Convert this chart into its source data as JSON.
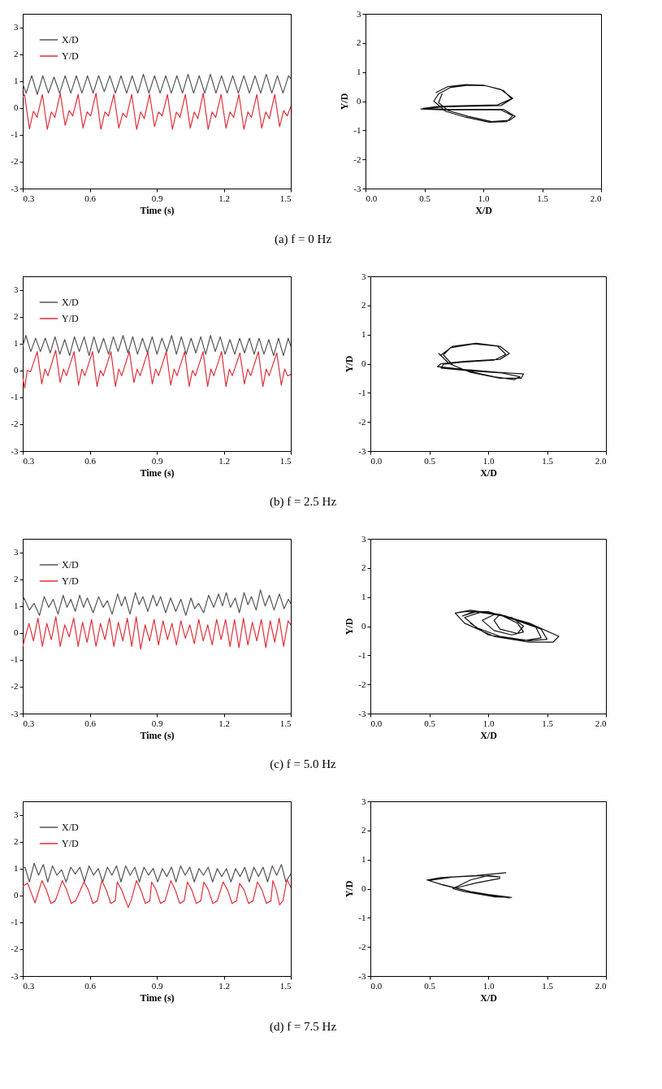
{
  "chart_data": [
    {
      "type": "line",
      "xlabel": "Time (s)",
      "xlim": [
        0.3,
        1.5
      ],
      "xticks": [
        0.3,
        0.6,
        0.9,
        1.2,
        1.5
      ],
      "ylim": [
        -3,
        3.5
      ],
      "yticks": [
        -3,
        -2,
        -1,
        0,
        1,
        2,
        3
      ],
      "legend": "top left",
      "annotations": [
        "(a) f = 0 Hz"
      ],
      "series": [
        {
          "name": "X/D",
          "color": "#555555",
          "x": [
            0.3,
            0.315,
            0.34,
            0.365,
            0.39,
            0.415,
            0.44,
            0.465,
            0.49,
            0.515,
            0.54,
            0.565,
            0.59,
            0.615,
            0.64,
            0.665,
            0.69,
            0.715,
            0.74,
            0.765,
            0.79,
            0.815,
            0.84,
            0.865,
            0.89,
            0.915,
            0.94,
            0.965,
            0.99,
            1.015,
            1.04,
            1.065,
            1.09,
            1.115,
            1.14,
            1.165,
            1.19,
            1.215,
            1.24,
            1.265,
            1.29,
            1.315,
            1.34,
            1.365,
            1.39,
            1.415,
            1.44,
            1.465,
            1.49,
            1.5
          ],
          "values": [
            0.9,
            0.55,
            1.2,
            0.5,
            1.2,
            0.55,
            1.15,
            0.55,
            1.2,
            0.55,
            1.2,
            0.55,
            1.2,
            0.55,
            1.2,
            0.6,
            1.2,
            0.55,
            1.2,
            0.55,
            1.2,
            0.55,
            1.25,
            0.55,
            1.2,
            0.55,
            1.2,
            0.55,
            1.2,
            0.55,
            1.25,
            0.55,
            1.2,
            0.55,
            1.25,
            0.55,
            1.2,
            0.55,
            1.2,
            0.55,
            1.2,
            0.55,
            1.2,
            0.55,
            1.25,
            0.55,
            1.2,
            0.55,
            1.2,
            1.1
          ]
        },
        {
          "name": "Y/D",
          "color": "#e0303a",
          "x": [
            0.3,
            0.308,
            0.33,
            0.348,
            0.364,
            0.388,
            0.41,
            0.428,
            0.444,
            0.468,
            0.49,
            0.508,
            0.524,
            0.548,
            0.57,
            0.588,
            0.604,
            0.628,
            0.65,
            0.668,
            0.684,
            0.708,
            0.73,
            0.748,
            0.764,
            0.788,
            0.81,
            0.828,
            0.844,
            0.868,
            0.89,
            0.908,
            0.924,
            0.948,
            0.97,
            0.988,
            1.004,
            1.028,
            1.05,
            1.068,
            1.084,
            1.108,
            1.13,
            1.148,
            1.164,
            1.188,
            1.21,
            1.228,
            1.244,
            1.268,
            1.29,
            1.308,
            1.324,
            1.348,
            1.37,
            1.388,
            1.404,
            1.428,
            1.45,
            1.468,
            1.484,
            1.5
          ],
          "values": [
            0.4,
            0.5,
            -0.78,
            -0.12,
            -0.35,
            0.5,
            -0.8,
            -0.15,
            -0.35,
            0.55,
            -0.65,
            -0.1,
            -0.3,
            0.5,
            -0.75,
            -0.15,
            -0.3,
            0.55,
            -0.8,
            -0.15,
            -0.3,
            0.5,
            -0.75,
            -0.2,
            -0.35,
            0.5,
            -0.8,
            -0.15,
            -0.4,
            0.5,
            -0.7,
            -0.15,
            -0.3,
            0.5,
            -0.8,
            -0.15,
            -0.35,
            0.5,
            -0.75,
            -0.15,
            -0.4,
            0.55,
            -0.8,
            -0.15,
            -0.35,
            0.5,
            -0.75,
            -0.15,
            -0.35,
            0.5,
            -0.8,
            -0.15,
            -0.35,
            0.5,
            -0.75,
            -0.15,
            -0.4,
            0.5,
            -0.7,
            -0.1,
            -0.3,
            0.05
          ]
        }
      ]
    },
    {
      "type": "line",
      "xlabel": "X/D",
      "ylabel": "Y/D",
      "xlim": [
        0,
        2
      ],
      "xticks": [
        {
          "value": 0,
          "label": "0.0"
        },
        {
          "value": 0.5,
          "label": "0.5"
        },
        {
          "value": 1,
          "label": "1.0"
        },
        {
          "value": 1.5,
          "label": "1.5"
        },
        {
          "value": 2,
          "label": "2.0"
        }
      ],
      "ylim": [
        -3,
        3
      ],
      "yticks": [
        -3,
        -2,
        -1,
        0,
        1,
        2,
        3
      ],
      "series": [
        {
          "color": "#111111",
          "x": [
            0.6,
            0.7,
            0.85,
            1.0,
            1.15,
            1.25,
            1.15,
            0.9,
            0.65,
            0.47,
            0.65,
            0.95,
            1.15,
            1.25,
            1.2,
            1.05,
            0.85,
            0.68,
            0.58,
            0.62,
            0.72,
            0.87,
            1.02,
            1.17,
            1.24,
            1.12,
            0.88,
            0.62,
            0.49,
            0.68,
            0.97,
            1.17,
            1.27,
            1.22,
            1.07,
            0.87,
            0.7,
            0.62,
            0.65
          ],
          "values": [
            0.3,
            0.5,
            0.57,
            0.55,
            0.4,
            0.1,
            -0.15,
            -0.17,
            -0.2,
            -0.27,
            -0.3,
            -0.3,
            -0.3,
            -0.5,
            -0.7,
            -0.72,
            -0.55,
            -0.35,
            0.0,
            0.25,
            0.47,
            0.55,
            0.53,
            0.37,
            0.08,
            -0.13,
            -0.15,
            -0.18,
            -0.25,
            -0.28,
            -0.28,
            -0.28,
            -0.52,
            -0.66,
            -0.7,
            -0.52,
            -0.32,
            -0.05,
            0.25
          ]
        }
      ]
    },
    {
      "type": "line",
      "xlabel": "Time (s)",
      "xlim": [
        0.3,
        1.5
      ],
      "xticks": [
        0.3,
        0.6,
        0.9,
        1.2,
        1.5
      ],
      "ylim": [
        -3,
        3.5
      ],
      "yticks": [
        -3,
        -2,
        -1,
        0,
        1,
        2,
        3
      ],
      "legend": "top left",
      "annotations": [
        "(b) f = 2.5 Hz"
      ],
      "series": [
        {
          "name": "X/D",
          "color": "#555555",
          "x": [
            0.3,
            0.314,
            0.336,
            0.3575,
            0.379,
            0.401,
            0.423,
            0.4445,
            0.466,
            0.488,
            0.51,
            0.5315,
            0.553,
            0.575,
            0.597,
            0.6185,
            0.64,
            0.662,
            0.684,
            0.7055,
            0.727,
            0.749,
            0.771,
            0.7925,
            0.814,
            0.836,
            0.858,
            0.8795,
            0.901,
            0.923,
            0.945,
            0.9665,
            0.988,
            1.01,
            1.032,
            1.0535,
            1.075,
            1.097,
            1.119,
            1.1405,
            1.162,
            1.184,
            1.206,
            1.2275,
            1.249,
            1.271,
            1.293,
            1.3145,
            1.336,
            1.358,
            1.38,
            1.4015,
            1.423,
            1.445,
            1.467,
            1.4885,
            1.5
          ],
          "values": [
            0.9,
            1.3,
            0.7,
            1.2,
            0.7,
            1.2,
            0.65,
            1.25,
            0.6,
            1.15,
            0.55,
            1.25,
            0.7,
            1.25,
            0.55,
            1.25,
            0.65,
            1.2,
            0.6,
            1.25,
            0.7,
            1.3,
            0.65,
            1.25,
            0.6,
            1.2,
            0.65,
            1.25,
            0.6,
            1.2,
            0.7,
            1.3,
            0.6,
            1.25,
            0.6,
            1.2,
            0.65,
            1.25,
            0.6,
            1.3,
            0.7,
            1.25,
            0.6,
            1.15,
            0.6,
            1.2,
            0.65,
            1.2,
            0.6,
            1.2,
            0.6,
            1.15,
            0.55,
            1.2,
            0.55,
            1.2,
            0.9
          ]
        },
        {
          "name": "Y/D",
          "color": "#e0303a",
          "x": [
            0.3,
            0.309,
            0.32,
            0.335,
            0.365,
            0.385,
            0.4,
            0.413,
            0.4475,
            0.4675,
            0.4825,
            0.4955,
            0.53,
            0.55,
            0.565,
            0.578,
            0.6125,
            0.6325,
            0.6475,
            0.6605,
            0.695,
            0.715,
            0.73,
            0.743,
            0.7775,
            0.7975,
            0.8125,
            0.8255,
            0.86,
            0.88,
            0.895,
            0.908,
            0.9425,
            0.9625,
            0.9775,
            0.9905,
            1.025,
            1.045,
            1.06,
            1.073,
            1.1075,
            1.1275,
            1.1425,
            1.1555,
            1.19,
            1.21,
            1.225,
            1.238,
            1.2725,
            1.2925,
            1.3075,
            1.3205,
            1.355,
            1.375,
            1.39,
            1.403,
            1.4375,
            1.4575,
            1.4725,
            1.4855,
            1.5
          ],
          "values": [
            -0.3,
            -0.65,
            0.0,
            -0.05,
            0.7,
            -0.5,
            0.05,
            -0.2,
            0.75,
            -0.45,
            0.05,
            -0.2,
            0.7,
            -0.55,
            0.05,
            -0.2,
            0.7,
            -0.6,
            0.0,
            -0.2,
            0.7,
            -0.6,
            0.05,
            -0.2,
            0.7,
            -0.45,
            0.05,
            -0.2,
            0.7,
            -0.5,
            0.05,
            -0.2,
            0.7,
            -0.55,
            0.05,
            -0.2,
            0.7,
            -0.6,
            0.0,
            -0.2,
            0.7,
            -0.6,
            0.05,
            -0.2,
            0.7,
            -0.6,
            0.05,
            -0.2,
            0.65,
            -0.5,
            0.05,
            -0.2,
            0.7,
            -0.6,
            0.05,
            -0.2,
            0.65,
            -0.55,
            0.05,
            -0.2,
            -0.15
          ]
        }
      ]
    },
    {
      "type": "line",
      "xlabel": "X/D",
      "ylabel": "Y/D",
      "xlim": [
        0,
        2
      ],
      "xticks": [
        {
          "value": 0,
          "label": "0.0"
        },
        {
          "value": 0.5,
          "label": "0.5"
        },
        {
          "value": 1,
          "label": "1.0"
        },
        {
          "value": 1.5,
          "label": "1.5"
        },
        {
          "value": 2,
          "label": "2.0"
        }
      ],
      "ylim": [
        -3,
        3
      ],
      "yticks": [
        -3,
        -2,
        -1,
        0,
        1,
        2,
        3
      ],
      "series": [
        {
          "color": "#111111",
          "x": [
            0.6,
            0.7,
            0.9,
            1.1,
            1.18,
            1.1,
            0.8,
            0.6,
            0.57,
            0.8,
            1.1,
            1.3,
            1.28,
            1.1,
            0.85,
            0.7,
            0.62,
            0.68,
            0.88,
            1.08,
            1.15,
            1.05,
            0.78,
            0.62,
            0.6,
            0.85,
            1.12,
            1.27,
            1.22,
            1.05,
            0.82,
            0.67,
            0.58
          ],
          "values": [
            0.3,
            0.6,
            0.7,
            0.6,
            0.35,
            0.15,
            0.08,
            0.0,
            -0.1,
            -0.2,
            -0.3,
            -0.35,
            -0.5,
            -0.5,
            -0.3,
            -0.05,
            0.3,
            0.55,
            0.68,
            0.6,
            0.32,
            0.12,
            0.05,
            -0.02,
            -0.15,
            -0.25,
            -0.32,
            -0.45,
            -0.55,
            -0.45,
            -0.25,
            0.0,
            0.35
          ]
        }
      ]
    },
    {
      "type": "line",
      "xlabel": "Time (s)",
      "xlim": [
        0.3,
        1.5
      ],
      "xticks": [
        0.3,
        0.6,
        0.9,
        1.2,
        1.5
      ],
      "ylim": [
        -3,
        3.5
      ],
      "yticks": [
        -3,
        -2,
        -1,
        0,
        1,
        2,
        3
      ],
      "legend": "top left",
      "annotations": [
        "(c) f = 5.0 Hz"
      ],
      "series": [
        {
          "name": "X/D",
          "color": "#555555",
          "x": [
            0.3,
            0.306,
            0.33,
            0.351,
            0.375,
            0.396,
            0.416,
            0.436,
            0.458,
            0.481,
            0.498,
            0.515,
            0.535,
            0.555,
            0.572,
            0.589,
            0.615,
            0.64,
            0.66,
            0.679,
            0.7,
            0.725,
            0.742,
            0.758,
            0.78,
            0.804,
            0.821,
            0.838,
            0.86,
            0.883,
            0.9,
            0.917,
            0.94,
            0.962,
            0.985,
            1.008,
            1.03,
            1.053,
            1.07,
            1.087,
            1.11,
            1.132,
            1.155,
            1.177,
            1.194,
            1.211,
            1.23,
            1.251,
            1.27,
            1.291,
            1.308,
            1.324,
            1.345,
            1.364,
            1.385,
            1.404,
            1.425,
            1.449,
            1.47,
            1.489,
            1.5
          ],
          "values": [
            1.15,
            1.3,
            0.85,
            1.1,
            0.65,
            1.35,
            0.95,
            1.25,
            0.7,
            1.4,
            0.95,
            1.25,
            0.8,
            1.4,
            0.95,
            1.3,
            0.75,
            1.35,
            0.95,
            1.2,
            0.7,
            1.45,
            1.0,
            1.35,
            0.7,
            1.5,
            1.05,
            1.35,
            0.8,
            1.4,
            1.0,
            1.35,
            0.75,
            1.3,
            0.8,
            1.25,
            0.65,
            1.3,
            0.9,
            1.1,
            0.75,
            1.4,
            0.95,
            1.45,
            1.0,
            1.5,
            0.95,
            1.3,
            0.75,
            1.5,
            1.05,
            1.35,
            0.85,
            1.6,
            1.0,
            1.4,
            0.85,
            1.45,
            0.9,
            1.25,
            1.1
          ]
        },
        {
          "name": "Y/D",
          "color": "#e0303a",
          "x": [
            0.3,
            0.328,
            0.348,
            0.368,
            0.388,
            0.408,
            0.428,
            0.448,
            0.468,
            0.488,
            0.508,
            0.528,
            0.548,
            0.568,
            0.588,
            0.608,
            0.628,
            0.648,
            0.668,
            0.688,
            0.708,
            0.728,
            0.748,
            0.768,
            0.788,
            0.808,
            0.828,
            0.848,
            0.868,
            0.888,
            0.908,
            0.928,
            0.948,
            0.968,
            0.988,
            1.008,
            1.028,
            1.048,
            1.068,
            1.088,
            1.108,
            1.128,
            1.148,
            1.168,
            1.188,
            1.208,
            1.228,
            1.248,
            1.268,
            1.288,
            1.308,
            1.328,
            1.348,
            1.368,
            1.388,
            1.408,
            1.428,
            1.448,
            1.468,
            1.488,
            1.5
          ],
          "values": [
            -0.5,
            0.35,
            -0.3,
            0.55,
            -0.5,
            0.35,
            -0.25,
            0.6,
            -0.5,
            0.3,
            -0.15,
            0.55,
            -0.5,
            0.4,
            -0.35,
            0.5,
            -0.5,
            0.35,
            -0.25,
            0.55,
            -0.5,
            0.4,
            -0.3,
            0.55,
            -0.5,
            0.6,
            -0.6,
            0.3,
            -0.3,
            0.5,
            -0.45,
            0.45,
            -0.25,
            0.35,
            -0.45,
            0.45,
            -0.2,
            0.3,
            -0.4,
            0.5,
            -0.3,
            0.3,
            -0.45,
            0.5,
            -0.25,
            0.5,
            -0.5,
            0.5,
            -0.55,
            0.55,
            -0.45,
            0.4,
            -0.3,
            0.5,
            -0.55,
            0.45,
            -0.35,
            0.55,
            -0.5,
            0.45,
            0.3
          ]
        }
      ]
    },
    {
      "type": "line",
      "xlabel": "X/D",
      "ylabel": "Y/D",
      "xlim": [
        0,
        2
      ],
      "xticks": [
        {
          "value": 0,
          "label": "0.0"
        },
        {
          "value": 0.5,
          "label": "0.5"
        },
        {
          "value": 1,
          "label": "1.0"
        },
        {
          "value": 1.5,
          "label": "1.5"
        },
        {
          "value": 2,
          "label": "2.0"
        }
      ],
      "ylim": [
        -3,
        3
      ],
      "yticks": [
        -3,
        -2,
        -1,
        0,
        1,
        2,
        3
      ],
      "series": [
        {
          "color": "#111111",
          "x": [
            0.72,
            0.85,
            1.1,
            1.35,
            1.6,
            1.55,
            1.35,
            1.05,
            0.8,
            0.72,
            0.8,
            1.0,
            1.2,
            1.45,
            1.5,
            1.35,
            1.1,
            0.9,
            0.8,
            0.95,
            1.1,
            1.25,
            1.3,
            1.2,
            1.05,
            0.95,
            1.05,
            1.2,
            1.3,
            1.25,
            1.1,
            1.05,
            1.1,
            0.9,
            0.78,
            0.88,
            1.15,
            1.4,
            1.45,
            1.3,
            1.0,
            0.85
          ],
          "values": [
            0.45,
            0.55,
            0.4,
            0.1,
            -0.35,
            -0.55,
            -0.55,
            -0.35,
            0.1,
            0.45,
            0.5,
            0.5,
            0.25,
            -0.1,
            -0.45,
            -0.5,
            -0.35,
            -0.05,
            0.3,
            0.5,
            0.4,
            0.1,
            -0.2,
            -0.3,
            -0.15,
            0.2,
            0.4,
            0.3,
            0.0,
            -0.25,
            -0.1,
            0.2,
            0.4,
            0.5,
            0.35,
            0.5,
            0.35,
            0.0,
            -0.4,
            -0.5,
            -0.3,
            0.1
          ]
        }
      ]
    },
    {
      "type": "line",
      "xlabel": "Time (s)",
      "xlim": [
        0.3,
        1.5
      ],
      "xticks": [
        0.3,
        0.6,
        0.9,
        1.2,
        1.5
      ],
      "ylim": [
        -3,
        3.5
      ],
      "yticks": [
        -3,
        -2,
        -1,
        0,
        1,
        2,
        3
      ],
      "legend": "top left",
      "annotations": [
        "(d) f = 7.5 Hz"
      ],
      "series": [
        {
          "name": "X/D",
          "color": "#555555",
          "x": [
            0.3,
            0.31,
            0.33,
            0.351,
            0.371,
            0.392,
            0.412,
            0.433,
            0.453,
            0.474,
            0.494,
            0.515,
            0.535,
            0.556,
            0.576,
            0.597,
            0.617,
            0.638,
            0.658,
            0.679,
            0.699,
            0.72,
            0.74,
            0.761,
            0.781,
            0.802,
            0.822,
            0.843,
            0.863,
            0.884,
            0.904,
            0.925,
            0.945,
            0.966,
            0.986,
            1.007,
            1.027,
            1.048,
            1.068,
            1.089,
            1.109,
            1.13,
            1.15,
            1.171,
            1.191,
            1.212,
            1.232,
            1.253,
            1.273,
            1.294,
            1.314,
            1.335,
            1.355,
            1.376,
            1.396,
            1.417,
            1.437,
            1.458,
            1.478,
            1.5
          ],
          "values": [
            1.0,
            1.05,
            0.5,
            1.2,
            0.75,
            1.15,
            0.5,
            1.1,
            0.75,
            0.95,
            0.5,
            1.05,
            0.8,
            1.05,
            0.5,
            1.1,
            0.75,
            1.0,
            0.5,
            1.05,
            0.75,
            1.1,
            0.5,
            1.1,
            0.75,
            1.05,
            0.5,
            1.05,
            0.75,
            1.0,
            0.5,
            1.0,
            0.7,
            1.05,
            0.5,
            1.1,
            0.75,
            1.05,
            0.5,
            1.0,
            0.75,
            1.05,
            0.5,
            1.0,
            0.7,
            1.0,
            0.5,
            1.0,
            0.7,
            1.05,
            0.5,
            1.05,
            0.7,
            1.05,
            0.5,
            1.1,
            0.75,
            1.15,
            0.5,
            0.8
          ]
        },
        {
          "name": "Y/D",
          "color": "#e0303a",
          "x": [
            0.3,
            0.322,
            0.355,
            0.386,
            0.406,
            0.426,
            0.446,
            0.477,
            0.497,
            0.517,
            0.537,
            0.574,
            0.594,
            0.614,
            0.634,
            0.654,
            0.674,
            0.694,
            0.714,
            0.723,
            0.743,
            0.763,
            0.772,
            0.785,
            0.809,
            0.829,
            0.849,
            0.869,
            0.877,
            0.897,
            0.917,
            0.937,
            0.963,
            0.983,
            1.003,
            1.023,
            1.037,
            1.057,
            1.077,
            1.097,
            1.111,
            1.131,
            1.151,
            1.171,
            1.197,
            1.217,
            1.237,
            1.257,
            1.271,
            1.291,
            1.311,
            1.331,
            1.351,
            1.371,
            1.391,
            1.411,
            1.42,
            1.435,
            1.45,
            1.465,
            1.483,
            1.5
          ],
          "values": [
            0.35,
            0.45,
            -0.28,
            0.55,
            0.2,
            -0.3,
            -0.2,
            0.55,
            0.2,
            -0.3,
            -0.2,
            0.5,
            0.2,
            -0.3,
            -0.2,
            0.55,
            0.2,
            -0.3,
            -0.2,
            0.5,
            0.2,
            -0.25,
            -0.45,
            -0.2,
            0.55,
            0.2,
            -0.3,
            -0.2,
            0.5,
            0.2,
            -0.3,
            -0.2,
            0.55,
            0.2,
            -0.3,
            -0.2,
            0.5,
            0.2,
            -0.3,
            -0.2,
            0.5,
            0.2,
            -0.3,
            -0.2,
            0.5,
            0.2,
            -0.3,
            -0.2,
            0.45,
            0.2,
            -0.3,
            -0.2,
            0.5,
            0.2,
            -0.3,
            -0.2,
            0.55,
            0.2,
            -0.35,
            -0.2,
            0.6,
            0.3
          ]
        }
      ]
    },
    {
      "type": "line",
      "xlabel": "X/D",
      "ylabel": "Y/D",
      "xlim": [
        0,
        2
      ],
      "xticks": [
        {
          "value": 0,
          "label": "0.0"
        },
        {
          "value": 0.5,
          "label": "0.5"
        },
        {
          "value": 1,
          "label": "1.0"
        },
        {
          "value": 1.5,
          "label": "1.5"
        },
        {
          "value": 2,
          "label": "2.0"
        }
      ],
      "ylim": [
        -3,
        3
      ],
      "yticks": [
        -3,
        -2,
        -1,
        0,
        1,
        2,
        3
      ],
      "series": [
        {
          "color": "#111111",
          "x": [
            1.15,
            0.9,
            0.6,
            0.48,
            0.6,
            0.85,
            1.0,
            1.2,
            1.05,
            0.8,
            0.7,
            0.85,
            1.0,
            1.1,
            0.95,
            0.7,
            0.5,
            0.62,
            0.9,
            1.18,
            0.95,
            0.72,
            0.9,
            1.1
          ],
          "values": [
            0.55,
            0.45,
            0.38,
            0.3,
            0.15,
            -0.1,
            -0.2,
            -0.3,
            -0.28,
            -0.1,
            0.0,
            0.3,
            0.45,
            0.4,
            0.45,
            0.4,
            0.28,
            0.12,
            -0.15,
            -0.32,
            -0.2,
            0.02,
            0.2,
            0.35
          ]
        }
      ]
    }
  ]
}
